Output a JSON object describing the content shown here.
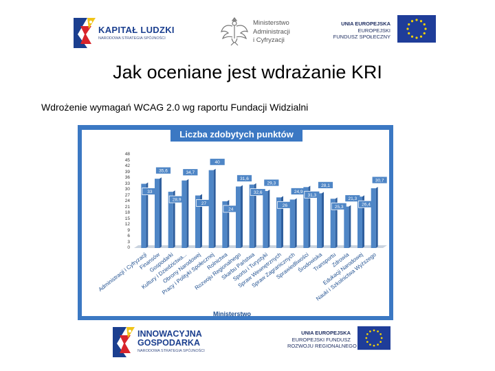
{
  "logos": {
    "kapital_ludzki": {
      "name": "KAPITAŁ LUDZKI",
      "tagline": "NARODOWA STRATEGIA SPÓJNOŚCI"
    },
    "ministry": {
      "lines": [
        "Ministerstwo",
        "Administracji",
        "i Cyfryzacji"
      ]
    },
    "eu_top": {
      "lines": [
        "UNIA EUROPEJSKA",
        "EUROPEJSKI",
        "FUNDUSZ SPOŁECZNY"
      ]
    },
    "innowacyjna": {
      "lines": [
        "INNOWACYJNA",
        "GOSPODARKA"
      ],
      "tagline": "NARODOWA STRATEGIA SPÓJNOŚCI"
    },
    "eu_bottom": {
      "lines": [
        "UNIA EUROPEJSKA",
        "EUROPEJSKI FUNDUSZ",
        "ROZWOJU REGIONALNEGO"
      ]
    }
  },
  "slide": {
    "title": "Jak oceniane jest wdrażanie KRI",
    "subtitle": "Wdrożenie wymagań WCAG 2.0 wg raportu Fundacji Widzialni"
  },
  "colors": {
    "frame": "#3b78c3",
    "bar": "#4f86c6",
    "bar_dark": "#2f5f9e",
    "label": "#1f4f8f"
  },
  "chart_data": {
    "type": "bar",
    "title": "Liczba zdobytych punktów",
    "xlabel": "Ministerstwo",
    "ylabel": "",
    "ylim": [
      0,
      48
    ],
    "yticks": [
      0,
      3,
      6,
      9,
      12,
      15,
      18,
      21,
      24,
      27,
      30,
      33,
      36,
      39,
      42,
      45,
      48
    ],
    "categories": [
      "Administracji i Cyfryzacji",
      "Finansów",
      "Gospodarki",
      "Kultury i Dziedzictwa...",
      "Obrony Narodowej",
      "Pracy i Polityki Społecznej",
      "Rolnictwa",
      "Rozwoju Regionalnego",
      "Skarbu Państwa",
      "Sportu i Turystyki",
      "Spraw Wewnętrznych",
      "Spraw Zagranicznych",
      "Sprawiedliwości",
      "Środowiska",
      "Transportu",
      "Zdrowia",
      "Edukacji Narodowej",
      "Nauki i Szkolnictwa Wyższego"
    ],
    "values": [
      33,
      35.6,
      28.9,
      34.7,
      27,
      40,
      24,
      31.6,
      32.6,
      29.3,
      26,
      24.9,
      31.3,
      28.1,
      25.3,
      21.3,
      26.4,
      30.7
    ],
    "data_labels": [
      "33",
      "35,6",
      "28,9",
      "34,7",
      "27",
      "40",
      "24",
      "31,6",
      "32,6",
      "29,3",
      "26",
      "24,9",
      "31,3",
      "28,1",
      "25,3",
      "21,3",
      "26,4",
      "30,7"
    ]
  }
}
